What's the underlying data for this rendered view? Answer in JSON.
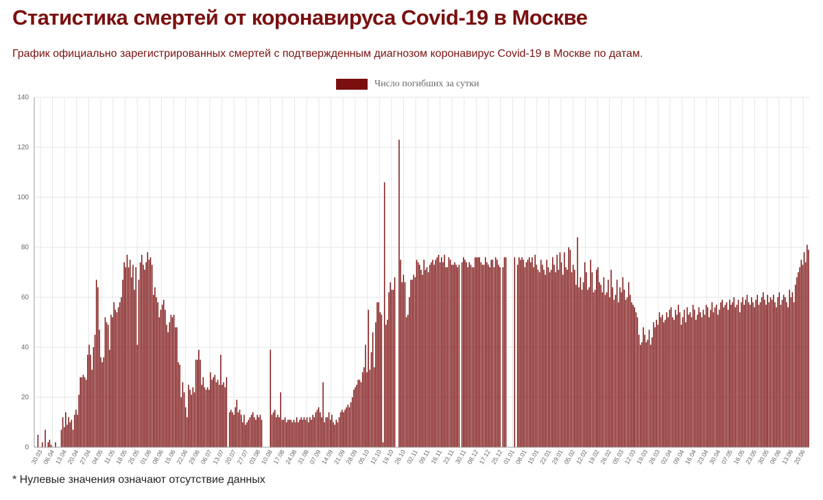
{
  "title": "Статистика смертей от коронавируса Covid-19 в Москве",
  "subtitle": "График официально зарегистрированных смертей с подтвержденным диагнозом коронавирус Covid-19 в Москве по датам.",
  "footnote": "* Нулевые значения означают отсутствие данных",
  "colors": {
    "bar": "#7b0f0f",
    "title": "#7a1010",
    "grid": "#e6e6e6",
    "axis": "#999999"
  },
  "chart_data": {
    "type": "bar",
    "series": [
      {
        "name": "Число погибших за сутки",
        "values": [
          0,
          0,
          5,
          0,
          0,
          2,
          0,
          7,
          0,
          2,
          3,
          1,
          0,
          0,
          2,
          0,
          0,
          0,
          7,
          12,
          8,
          14,
          9,
          12,
          10,
          11,
          7,
          13,
          15,
          13,
          21,
          28,
          28,
          29,
          28,
          27,
          37,
          41,
          37,
          31,
          40,
          45,
          67,
          64,
          47,
          36,
          34,
          36,
          52,
          50,
          49,
          39,
          53,
          52,
          58,
          55,
          54,
          56,
          58,
          60,
          67,
          74,
          72,
          77,
          72,
          75,
          68,
          73,
          63,
          72,
          41,
          67,
          74,
          77,
          73,
          71,
          74,
          78,
          75,
          76,
          73,
          61,
          64,
          60,
          58,
          52,
          55,
          57,
          59,
          55,
          49,
          46,
          50,
          53,
          52,
          53,
          48,
          48,
          34,
          33,
          20,
          26,
          22,
          16,
          12,
          25,
          23,
          21,
          24,
          22,
          35,
          35,
          39,
          35,
          25,
          28,
          24,
          23,
          24,
          23,
          30,
          27,
          28,
          29,
          26,
          27,
          25,
          37,
          25,
          26,
          24,
          28,
          0,
          14,
          15,
          14,
          13,
          16,
          19,
          14,
          15,
          13,
          10,
          13,
          9,
          10,
          11,
          12,
          13,
          14,
          12,
          11,
          13,
          12,
          13,
          11,
          0,
          0,
          0,
          0,
          0,
          39,
          13,
          14,
          15,
          12,
          13,
          12,
          22,
          11,
          11,
          12,
          10,
          11,
          11,
          11,
          10,
          11,
          10,
          12,
          10,
          11,
          12,
          11,
          12,
          11,
          12,
          10,
          12,
          11,
          13,
          12,
          14,
          15,
          16,
          14,
          12,
          26,
          10,
          12,
          12,
          14,
          11,
          13,
          10,
          9,
          11,
          10,
          12,
          14,
          15,
          14,
          15,
          16,
          17,
          16,
          18,
          20,
          23,
          24,
          25,
          27,
          27,
          26,
          30,
          32,
          41,
          30,
          55,
          31,
          38,
          46,
          32,
          50,
          58,
          58,
          54,
          53,
          2,
          106,
          49,
          51,
          62,
          66,
          63,
          63,
          68,
          0,
          0,
          123,
          75,
          66,
          69,
          66,
          52,
          53,
          60,
          67,
          67,
          69,
          68,
          75,
          74,
          73,
          71,
          69,
          75,
          71,
          72,
          70,
          73,
          74,
          75,
          73,
          75,
          76,
          77,
          74,
          76,
          74,
          77,
          72,
          72,
          76,
          75,
          73,
          73,
          74,
          73,
          72,
          73,
          0,
          74,
          76,
          75,
          74,
          72,
          74,
          73,
          72,
          72,
          76,
          76,
          76,
          76,
          74,
          73,
          73,
          76,
          74,
          73,
          72,
          75,
          75,
          72,
          76,
          75,
          73,
          72,
          0,
          72,
          76,
          76,
          0,
          0,
          0,
          0,
          0,
          76,
          0,
          73,
          76,
          75,
          76,
          75,
          72,
          74,
          75,
          76,
          74,
          76,
          72,
          77,
          73,
          71,
          70,
          75,
          73,
          71,
          69,
          75,
          72,
          70,
          71,
          76,
          73,
          70,
          77,
          71,
          78,
          74,
          69,
          78,
          72,
          71,
          80,
          79,
          70,
          73,
          71,
          65,
          84,
          64,
          68,
          63,
          66,
          74,
          70,
          63,
          64,
          75,
          70,
          62,
          63,
          71,
          72,
          66,
          65,
          62,
          68,
          61,
          62,
          67,
          60,
          71,
          64,
          59,
          61,
          67,
          58,
          64,
          62,
          68,
          63,
          59,
          60,
          66,
          61,
          58,
          57,
          56,
          54,
          52,
          45,
          41,
          42,
          48,
          45,
          42,
          43,
          47,
          41,
          44,
          50,
          48,
          51,
          49,
          54,
          52,
          53,
          50,
          51,
          54,
          52,
          55,
          56,
          52,
          51,
          55,
          53,
          57,
          54,
          49,
          52,
          55,
          50,
          56,
          53,
          54,
          52,
          57,
          55,
          51,
          53,
          56,
          54,
          52,
          55,
          53,
          57,
          56,
          52,
          55,
          58,
          54,
          56,
          57,
          53,
          55,
          58,
          59,
          56,
          57,
          58,
          55,
          59,
          57,
          58,
          60,
          56,
          57,
          59,
          54,
          58,
          60,
          57,
          59,
          61,
          58,
          57,
          60,
          58,
          56,
          59,
          61,
          57,
          58,
          60,
          62,
          59,
          57,
          61,
          58,
          60,
          59,
          61,
          58,
          56,
          60,
          62,
          57,
          59,
          61,
          60,
          58,
          56,
          63,
          60,
          62,
          58,
          65,
          68,
          70,
          72,
          75,
          73,
          78,
          74,
          81,
          79
        ]
      }
    ],
    "tick_labels": [
      "30.03",
      "06.04",
      "13.04",
      "20.04",
      "27.04",
      "04.05",
      "11.05",
      "18.05",
      "25.05",
      "01.06",
      "08.06",
      "15.06",
      "22.06",
      "29.06",
      "06.07",
      "13.07",
      "20.07",
      "27.07",
      "03.08",
      "10.08",
      "17.08",
      "24.08",
      "31.08",
      "07.09",
      "14.09",
      "21.09",
      "28.09",
      "05.10",
      "12.10",
      "19.10",
      "26.10",
      "02.11",
      "09.11",
      "16.11",
      "23.11",
      "30.11",
      "08.12",
      "17.12",
      "25.12",
      "01.01",
      "08.01",
      "15.01",
      "22.01",
      "29.01",
      "05.02",
      "12.02",
      "19.02",
      "26.02",
      "05.03",
      "12.03",
      "19.03",
      "26.03",
      "02.04",
      "09.04",
      "16.04",
      "23.04",
      "30.04",
      "07.05",
      "16.05",
      "23.05",
      "30.05",
      "06.06",
      "13.06",
      "20.06"
    ],
    "ylim": [
      0,
      140
    ],
    "yticks": [
      0,
      20,
      40,
      60,
      80,
      100,
      120,
      140
    ],
    "grid": true,
    "legend": "top-center"
  }
}
